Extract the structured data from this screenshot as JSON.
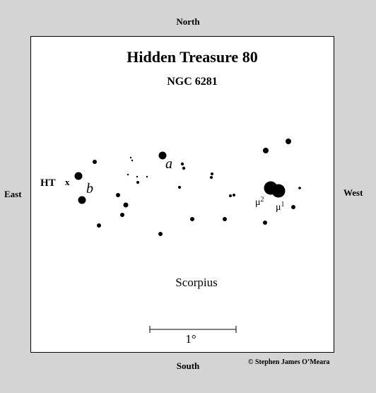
{
  "page": {
    "north": "North",
    "south": "South",
    "east": "East",
    "west": "West",
    "credit": "© Stephen James O’Meara"
  },
  "chart": {
    "title": "Hidden Treasure 80",
    "subtitle": "NGC 6281",
    "constellation": "Scorpius",
    "scale_label": "1°",
    "cluster_label": "HT",
    "cluster_marker": "x",
    "star_labels": {
      "a": "a",
      "b": "b",
      "mu1": "μ1",
      "mu2": "μ2"
    }
  }
}
